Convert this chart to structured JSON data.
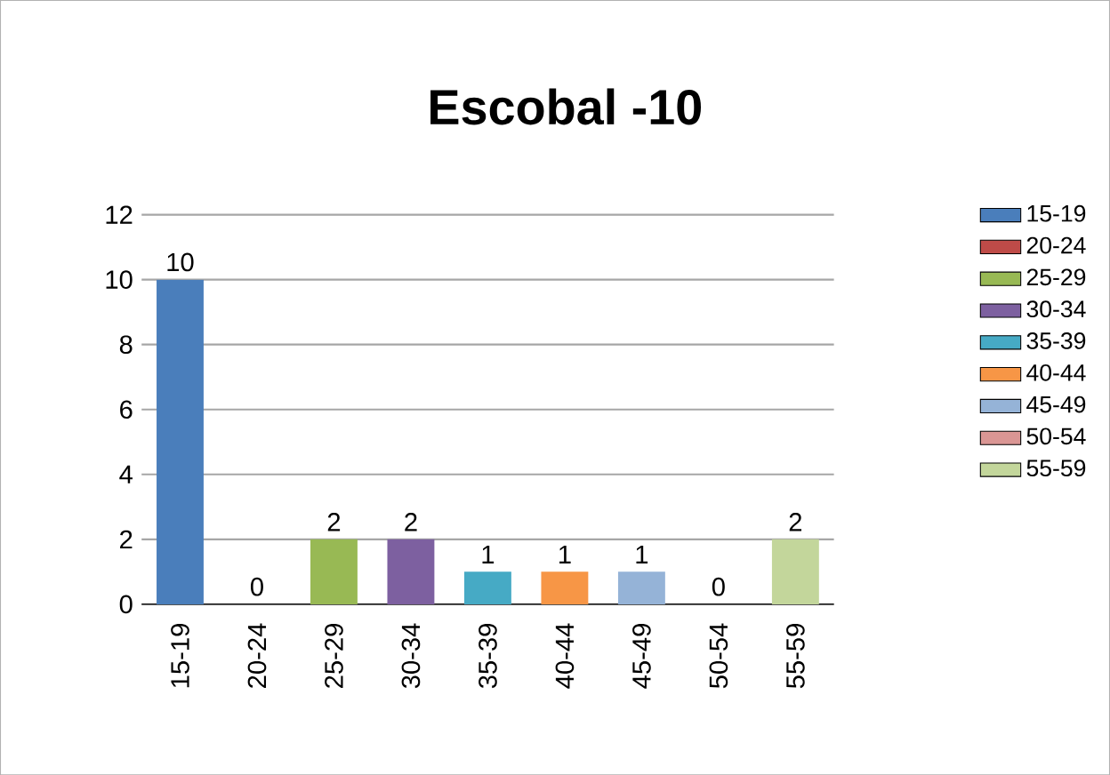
{
  "chart_data": {
    "type": "bar",
    "title": "Escobal  -10",
    "categories": [
      "15-19",
      "20-24",
      "25-29",
      "30-34",
      "35-39",
      "40-44",
      "45-49",
      "50-54",
      "55-59"
    ],
    "series": [
      {
        "name": "15-19",
        "color": "#4a7ebb",
        "values": [
          10,
          null,
          null,
          null,
          null,
          null,
          null,
          null,
          null
        ]
      },
      {
        "name": "20-24",
        "color": "#be4b48",
        "values": [
          null,
          0,
          null,
          null,
          null,
          null,
          null,
          null,
          null
        ]
      },
      {
        "name": "25-29",
        "color": "#98b954",
        "values": [
          null,
          null,
          2,
          null,
          null,
          null,
          null,
          null,
          null
        ]
      },
      {
        "name": "30-34",
        "color": "#7d60a0",
        "values": [
          null,
          null,
          null,
          2,
          null,
          null,
          null,
          null,
          null
        ]
      },
      {
        "name": "35-39",
        "color": "#46aac5",
        "values": [
          null,
          null,
          null,
          null,
          1,
          null,
          null,
          null,
          null
        ]
      },
      {
        "name": "40-44",
        "color": "#f79646",
        "values": [
          null,
          null,
          null,
          null,
          null,
          1,
          null,
          null,
          null
        ]
      },
      {
        "name": "45-49",
        "color": "#95b3d7",
        "values": [
          null,
          null,
          null,
          null,
          null,
          null,
          1,
          null,
          null
        ]
      },
      {
        "name": "50-54",
        "color": "#da9694",
        "values": [
          null,
          null,
          null,
          null,
          null,
          null,
          null,
          0,
          null
        ]
      },
      {
        "name": "55-59",
        "color": "#c3d69b",
        "values": [
          null,
          null,
          null,
          null,
          null,
          null,
          null,
          null,
          2
        ]
      }
    ],
    "ylim": [
      0,
      12
    ],
    "yticks": [
      0,
      2,
      4,
      6,
      8,
      10,
      12
    ],
    "grid": "y",
    "data_labels": true,
    "legend": "right"
  }
}
